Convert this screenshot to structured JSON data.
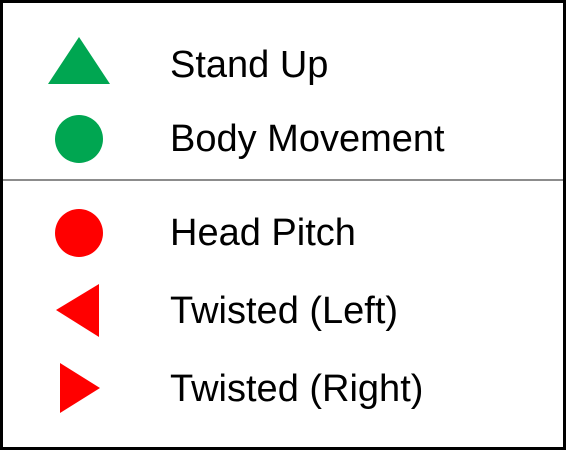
{
  "colors": {
    "green": "#00a651",
    "red": "#ff0000",
    "divider": "#8c8c8c"
  },
  "groups": [
    {
      "items": [
        {
          "label": "Stand Up",
          "shape": "triangle-up-icon",
          "color": "#00a651"
        },
        {
          "label": "Body Movement",
          "shape": "circle-icon",
          "color": "#00a651"
        }
      ]
    },
    {
      "items": [
        {
          "label": "Head Pitch",
          "shape": "circle-icon",
          "color": "#ff0000"
        },
        {
          "label": "Twisted (Left)",
          "shape": "triangle-left-icon",
          "color": "#ff0000"
        },
        {
          "label": "Twisted (Right)",
          "shape": "triangle-right-icon",
          "color": "#ff0000"
        }
      ]
    }
  ]
}
